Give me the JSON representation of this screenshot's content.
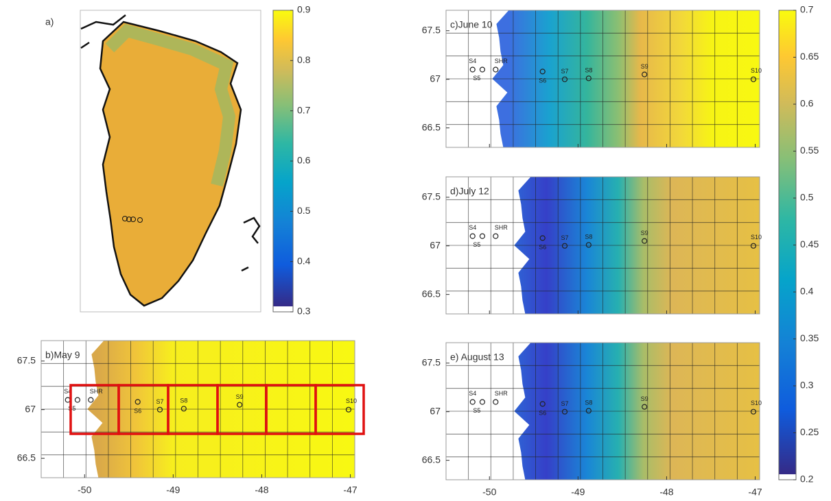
{
  "panels": [
    {
      "label": "a)"
    },
    {
      "label": "b)May 9"
    },
    {
      "label": "c)June 10"
    },
    {
      "label": "d)July 12"
    },
    {
      "label": "e) August 13"
    }
  ],
  "map_axes": {
    "xlim": [
      -50.49,
      -46.95
    ],
    "ylim": [
      66.3,
      67.71
    ],
    "xticks": [
      -50,
      -49,
      -48,
      -47
    ],
    "yticks": [
      67.5,
      67,
      66.5
    ]
  },
  "stations": [
    {
      "name": "S4",
      "lon": -50.19,
      "lat": 67.1
    },
    {
      "name": "S5",
      "lon": -50.08,
      "lat": 67.1
    },
    {
      "name": "SHR",
      "lon": -49.93,
      "lat": 67.1
    },
    {
      "name": "S6",
      "lon": -49.4,
      "lat": 67.08
    },
    {
      "name": "S7",
      "lon": -49.15,
      "lat": 67.0
    },
    {
      "name": "S8",
      "lon": -48.88,
      "lat": 67.01
    },
    {
      "name": "S9",
      "lon": -48.25,
      "lat": 67.05
    },
    {
      "name": "S10",
      "lon": -47.02,
      "lat": 67.0
    }
  ],
  "colorbars": [
    {
      "lim": [
        0.3,
        0.9
      ],
      "ticks": [
        0.3,
        0.4,
        0.5,
        0.6,
        0.7,
        0.8,
        0.9
      ]
    },
    {
      "lim": [
        0.2,
        0.7
      ],
      "ticks": [
        0.2,
        0.25,
        0.3,
        0.35,
        0.4,
        0.45,
        0.5,
        0.55,
        0.6,
        0.65,
        0.7
      ]
    }
  ]
}
